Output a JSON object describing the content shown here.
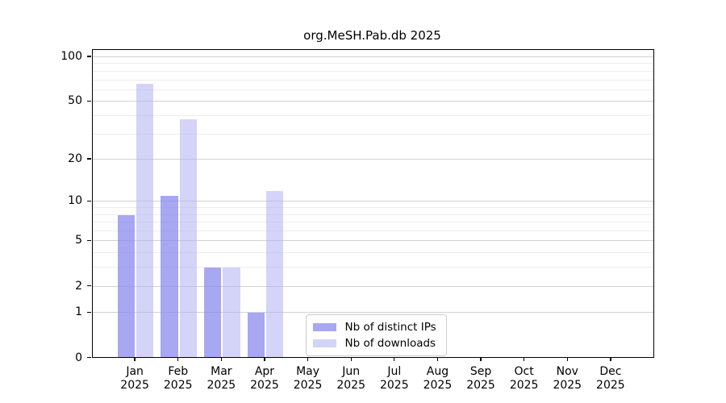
{
  "chart_data": {
    "type": "bar",
    "title": "org.MeSH.Pab.db 2025",
    "categories": [
      "Jan",
      "Feb",
      "Mar",
      "Apr",
      "May",
      "Jun",
      "Jul",
      "Aug",
      "Sep",
      "Oct",
      "Nov",
      "Dec"
    ],
    "year_label": "2025",
    "series": [
      {
        "name": "Nb of distinct IPs",
        "color": "rgba(134,134,237,0.73)",
        "values": [
          8,
          11,
          3,
          1,
          0,
          0,
          0,
          0,
          0,
          0,
          0,
          0
        ]
      },
      {
        "name": "Nb of downloads",
        "color": "rgba(177,177,242,0.55)",
        "values": [
          66,
          38,
          3,
          12,
          0,
          0,
          0,
          0,
          0,
          0,
          0,
          0
        ]
      }
    ],
    "y_scale": "log1p",
    "ylim": [
      0,
      100
    ],
    "y_major_ticks": [
      0,
      1,
      2,
      5,
      10,
      20,
      50,
      100
    ],
    "y_minor_ticks": [
      3,
      4,
      6,
      7,
      8,
      9,
      30,
      40,
      60,
      70,
      80,
      90
    ],
    "grid": "horizontal",
    "legend_position": "inside bottom-center-left",
    "xlabel": "",
    "ylabel": ""
  },
  "colors": {
    "major_grid": "#d2d2d2",
    "minor_grid": "#ececec",
    "axis_frame": "#000000",
    "tick_text": "#000000",
    "legend_border": "#cccccc",
    "background": "#ffffff"
  }
}
